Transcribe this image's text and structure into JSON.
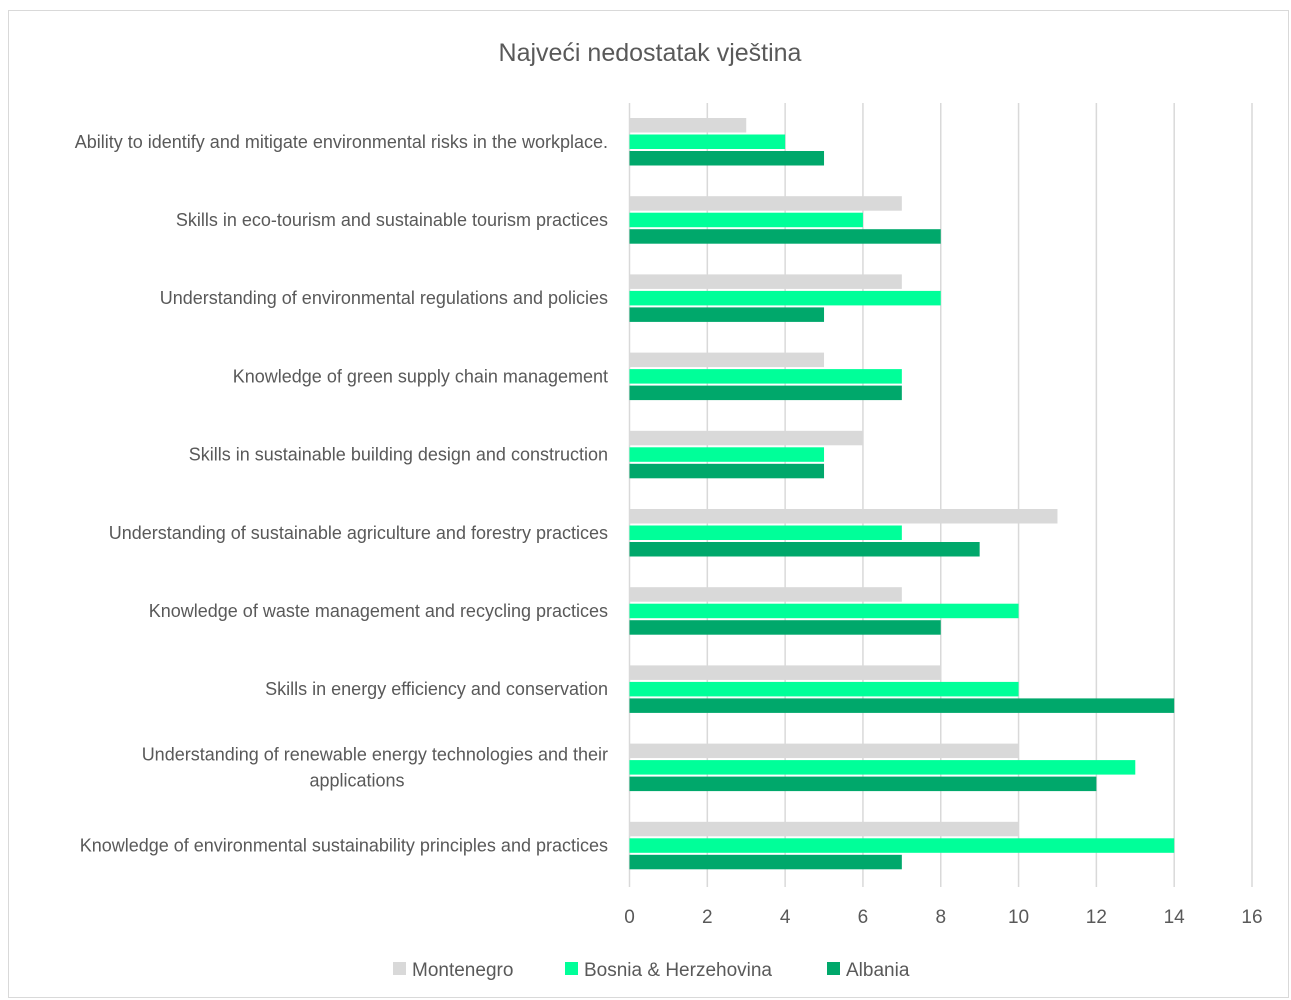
{
  "chart_data": {
    "type": "bar",
    "orientation": "horizontal",
    "title": "Najveći nedostatak vještina",
    "categories": [
      [
        "Ability to identify and mitigate environmental risks in the workplace."
      ],
      [
        "Skills in eco-tourism and sustainable tourism practices"
      ],
      [
        "Understanding of environmental regulations and policies"
      ],
      [
        "Knowledge of green supply chain management"
      ],
      [
        "Skills in sustainable building design and construction"
      ],
      [
        "Understanding of sustainable agriculture and forestry practices"
      ],
      [
        "Knowledge of waste management and recycling practices"
      ],
      [
        "Skills in energy efficiency and conservation"
      ],
      [
        "Understanding of renewable energy technologies and their",
        "applications"
      ],
      [
        "Knowledge of environmental sustainability principles and practices"
      ]
    ],
    "series": [
      {
        "name": "Montenegro",
        "color": "#d9d9d9",
        "values": [
          3,
          7,
          7,
          5,
          6,
          11,
          7,
          8,
          10,
          10
        ]
      },
      {
        "name": "Bosnia & Herzehovina",
        "color": "#00ff99",
        "values": [
          4,
          6,
          8,
          7,
          5,
          7,
          10,
          10,
          13,
          14
        ]
      },
      {
        "name": "Albania",
        "color": "#00a86b",
        "values": [
          5,
          8,
          5,
          7,
          5,
          9,
          8,
          14,
          12,
          7
        ]
      }
    ],
    "xlim": [
      0,
      16
    ],
    "xticks": [
      "0",
      "2",
      "4",
      "6",
      "8",
      "10",
      "12",
      "14",
      "16"
    ],
    "grid": true,
    "legend_position": "bottom"
  }
}
